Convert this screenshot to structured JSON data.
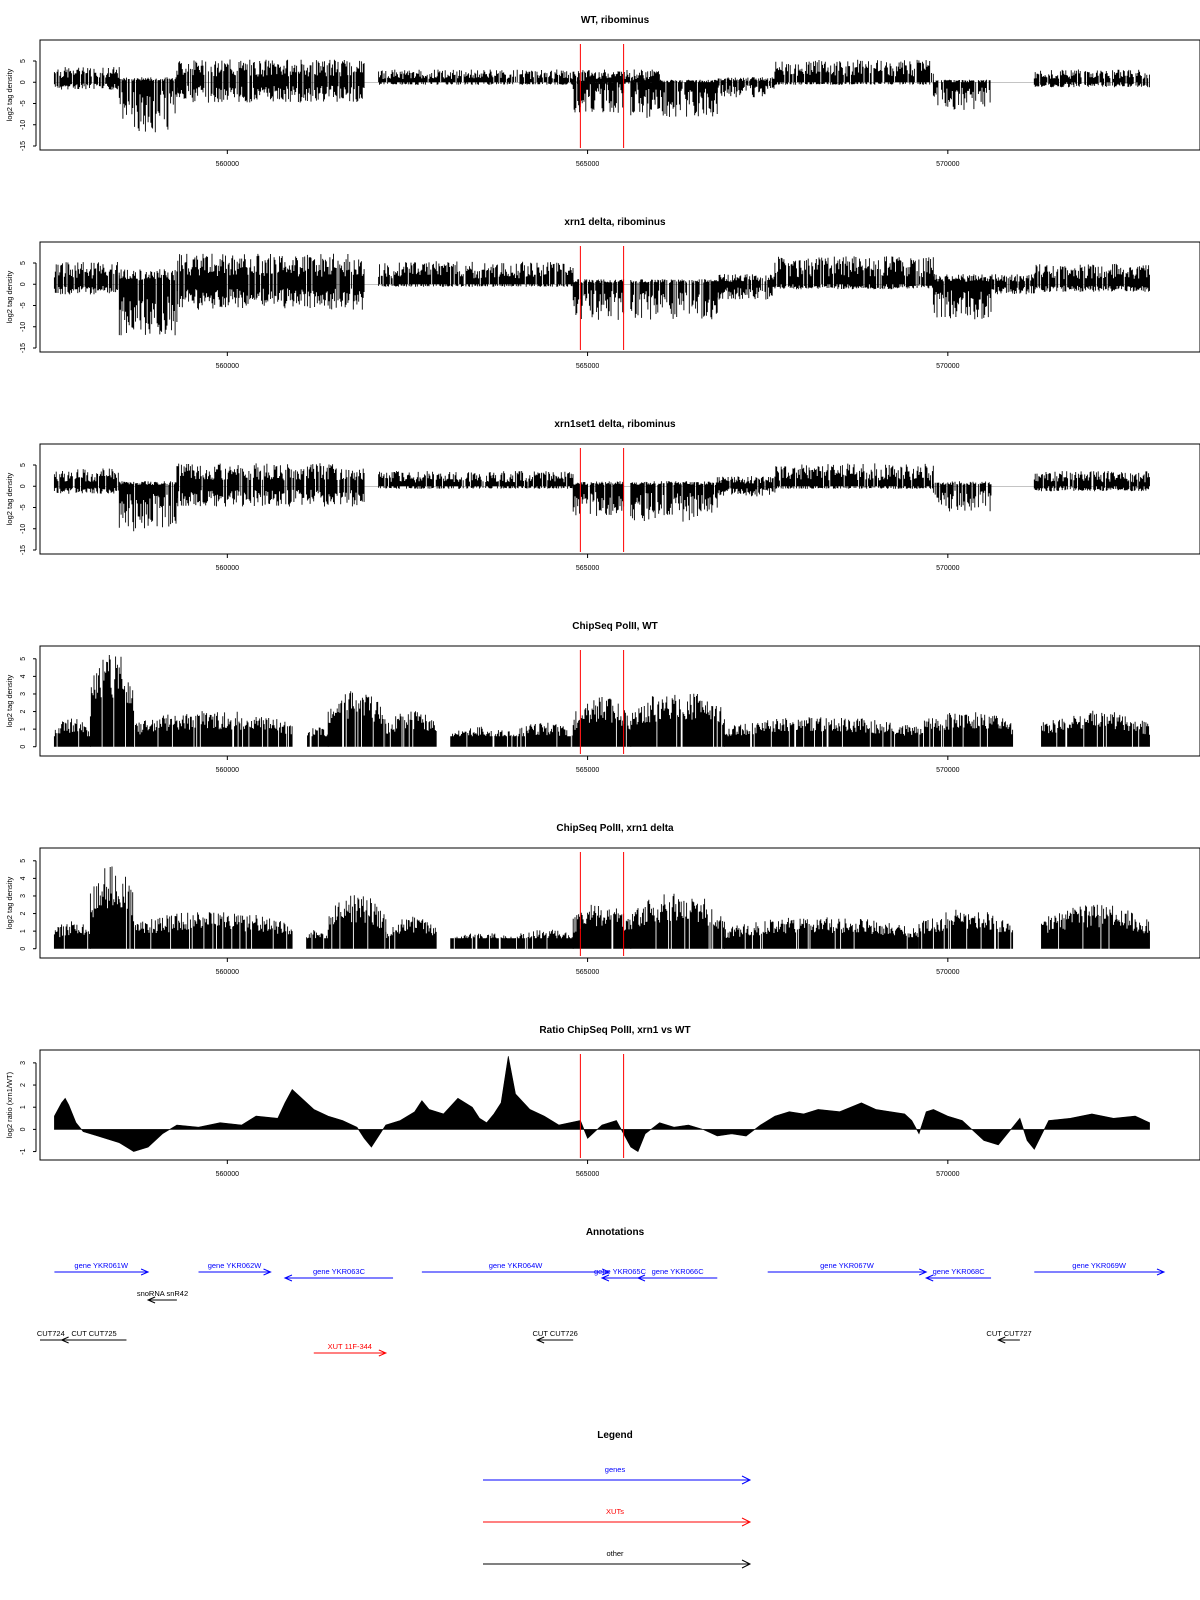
{
  "colors": {
    "foreground": "#000000",
    "marker": "#ff0000",
    "genes": "#0000ff",
    "xuts": "#ff0000",
    "other": "#000000"
  },
  "chart_data": [
    {
      "type": "bar",
      "title": "WT, ribominus",
      "ylabel": "log2 tag density",
      "ylim": [
        -15,
        9
      ],
      "yticks": [
        "5",
        "0",
        "-5",
        "-10",
        "-15"
      ],
      "xlim": [
        557400,
        573500
      ],
      "xticks": [
        "560000",
        "565000",
        "570000"
      ],
      "markers": [
        564900,
        565500
      ],
      "segments": [
        {
          "x0": 557600,
          "x1": 558500,
          "plus": 3,
          "minus": 1.5
        },
        {
          "x0": 558500,
          "x1": 559300,
          "plus": 1,
          "minus": 10
        },
        {
          "x0": 559300,
          "x1": 561900,
          "plus": 4.5,
          "minus": 4
        },
        {
          "x0": 562100,
          "x1": 566000,
          "plus": 2.5,
          "minus": 0.5
        },
        {
          "x0": 564800,
          "x1": 565500,
          "plus": 0.5,
          "minus": 6
        },
        {
          "x0": 565600,
          "x1": 566800,
          "plus": 0.5,
          "minus": 7
        },
        {
          "x0": 566800,
          "x1": 567600,
          "plus": 1,
          "minus": 3
        },
        {
          "x0": 567600,
          "x1": 569800,
          "plus": 4.5,
          "minus": 0.5
        },
        {
          "x0": 569800,
          "x1": 570600,
          "plus": 0.5,
          "minus": 5.5
        },
        {
          "x0": 571200,
          "x1": 572800,
          "plus": 2.5,
          "minus": 1
        }
      ]
    },
    {
      "type": "bar",
      "title": "xrn1 delta, ribominus",
      "ylabel": "log2 tag density",
      "ylim": [
        -15,
        9
      ],
      "yticks": [
        "5",
        "0",
        "-5",
        "-10",
        "-15"
      ],
      "xlim": [
        557400,
        573500
      ],
      "xticks": [
        "560000",
        "565000",
        "570000"
      ],
      "markers": [
        564900,
        565500
      ],
      "segments": [
        {
          "x0": 557600,
          "x1": 558500,
          "plus": 4.5,
          "minus": 2
        },
        {
          "x0": 558500,
          "x1": 559300,
          "plus": 3,
          "minus": 10
        },
        {
          "x0": 559300,
          "x1": 561900,
          "plus": 6,
          "minus": 5
        },
        {
          "x0": 562100,
          "x1": 564800,
          "plus": 4.5,
          "minus": 0.5
        },
        {
          "x0": 564800,
          "x1": 565500,
          "plus": 1,
          "minus": 7
        },
        {
          "x0": 565600,
          "x1": 566800,
          "plus": 1,
          "minus": 7
        },
        {
          "x0": 566800,
          "x1": 567600,
          "plus": 2,
          "minus": 3
        },
        {
          "x0": 567600,
          "x1": 569800,
          "plus": 5.5,
          "minus": 1
        },
        {
          "x0": 569800,
          "x1": 570600,
          "plus": 2,
          "minus": 7
        },
        {
          "x0": 570600,
          "x1": 571200,
          "plus": 2,
          "minus": 2
        },
        {
          "x0": 571200,
          "x1": 572800,
          "plus": 4,
          "minus": 1.5
        }
      ]
    },
    {
      "type": "bar",
      "title": "xrn1set1 delta, ribominus",
      "ylabel": "log2 tag density",
      "ylim": [
        -15,
        9
      ],
      "yticks": [
        "5",
        "0",
        "-5",
        "-10",
        "-15"
      ],
      "xlim": [
        557400,
        573500
      ],
      "xticks": [
        "560000",
        "565000",
        "570000"
      ],
      "markers": [
        564900,
        565500
      ],
      "segments": [
        {
          "x0": 557600,
          "x1": 558500,
          "plus": 3.5,
          "minus": 1.5
        },
        {
          "x0": 558500,
          "x1": 559300,
          "plus": 1,
          "minus": 9
        },
        {
          "x0": 559300,
          "x1": 561900,
          "plus": 4.5,
          "minus": 4
        },
        {
          "x0": 562100,
          "x1": 564800,
          "plus": 3,
          "minus": 0.5
        },
        {
          "x0": 564800,
          "x1": 565500,
          "plus": 1,
          "minus": 6
        },
        {
          "x0": 565600,
          "x1": 566800,
          "plus": 1,
          "minus": 7
        },
        {
          "x0": 566800,
          "x1": 567600,
          "plus": 2,
          "minus": 2
        },
        {
          "x0": 567600,
          "x1": 569800,
          "plus": 4.5,
          "minus": 0.5
        },
        {
          "x0": 569800,
          "x1": 570600,
          "plus": 1,
          "minus": 5
        },
        {
          "x0": 571200,
          "x1": 572800,
          "plus": 3,
          "minus": 1
        }
      ]
    },
    {
      "type": "bar",
      "title": "ChipSeq PolII, WT",
      "ylabel": "log2 tag density",
      "ylim": [
        -0.3,
        5.5
      ],
      "yticks": [
        "5",
        "4",
        "3",
        "2",
        "1",
        "0"
      ],
      "xlim": [
        557400,
        573500
      ],
      "xticks": [
        "560000",
        "565000",
        "570000"
      ],
      "markers": [
        564900,
        565500
      ],
      "segments": [
        {
          "x0": 557600,
          "x1": 558100,
          "level": 1.4
        },
        {
          "x0": 558100,
          "x1": 558700,
          "level": 4.8
        },
        {
          "x0": 558700,
          "x1": 560900,
          "level": 1.8
        },
        {
          "x0": 561100,
          "x1": 561400,
          "level": 1
        },
        {
          "x0": 561400,
          "x1": 562200,
          "level": 2.8
        },
        {
          "x0": 562200,
          "x1": 562900,
          "level": 1.8
        },
        {
          "x0": 563100,
          "x1": 564000,
          "level": 1
        },
        {
          "x0": 564000,
          "x1": 564800,
          "level": 1.2
        },
        {
          "x0": 564800,
          "x1": 565600,
          "level": 2.5
        },
        {
          "x0": 565600,
          "x1": 566900,
          "level": 2.8
        },
        {
          "x0": 566900,
          "x1": 569600,
          "level": 1.5
        },
        {
          "x0": 569600,
          "x1": 570900,
          "level": 1.8
        },
        {
          "x0": 571300,
          "x1": 572800,
          "level": 1.8
        }
      ]
    },
    {
      "type": "bar",
      "title": "ChipSeq PolII, xrn1 delta",
      "ylabel": "log2 tag density",
      "ylim": [
        -0.3,
        5.5
      ],
      "yticks": [
        "5",
        "4",
        "3",
        "2",
        "1",
        "0"
      ],
      "xlim": [
        557400,
        573500
      ],
      "xticks": [
        "560000",
        "565000",
        "570000"
      ],
      "markers": [
        564900,
        565500
      ],
      "segments": [
        {
          "x0": 557600,
          "x1": 558100,
          "level": 1.4
        },
        {
          "x0": 558100,
          "x1": 558700,
          "level": 4.2
        },
        {
          "x0": 558700,
          "x1": 560900,
          "level": 1.9
        },
        {
          "x0": 561100,
          "x1": 561400,
          "level": 1
        },
        {
          "x0": 561400,
          "x1": 562200,
          "level": 2.7
        },
        {
          "x0": 562200,
          "x1": 562900,
          "level": 1.6
        },
        {
          "x0": 563100,
          "x1": 564000,
          "level": 0.8
        },
        {
          "x0": 564000,
          "x1": 564800,
          "level": 1
        },
        {
          "x0": 564800,
          "x1": 565600,
          "level": 2.3
        },
        {
          "x0": 565600,
          "x1": 566900,
          "level": 2.8
        },
        {
          "x0": 566900,
          "x1": 569600,
          "level": 1.6
        },
        {
          "x0": 569600,
          "x1": 570900,
          "level": 2
        },
        {
          "x0": 571300,
          "x1": 572800,
          "level": 2.2
        }
      ]
    },
    {
      "type": "area",
      "title": "Ratio ChipSeq PolII, xrn1 vs WT",
      "ylabel": "log2 ratio (xrn1/WT)",
      "ylim": [
        -1.2,
        3.4
      ],
      "yticks": [
        "3",
        "2",
        "1",
        "0",
        "-1"
      ],
      "xlim": [
        557400,
        573500
      ],
      "xticks": [
        "560000",
        "565000",
        "570000"
      ],
      "markers": [
        564900,
        565500
      ],
      "x": [
        557600,
        557700,
        557750,
        557800,
        557900,
        558000,
        558200,
        558500,
        558700,
        558900,
        559100,
        559300,
        559600,
        559900,
        560200,
        560400,
        560700,
        560800,
        560900,
        561000,
        561200,
        561400,
        561600,
        561800,
        561900,
        562000,
        562200,
        562400,
        562600,
        562700,
        562800,
        563000,
        563200,
        563400,
        563500,
        563600,
        563700,
        563800,
        563900,
        564000,
        564200,
        564400,
        564600,
        564900,
        565000,
        565200,
        565400,
        565600,
        565700,
        565800,
        566000,
        566200,
        566400,
        566600,
        566800,
        567000,
        567200,
        567400,
        567600,
        567800,
        568000,
        568200,
        568500,
        568800,
        569000,
        569200,
        569400,
        569500,
        569600,
        569700,
        569800,
        570000,
        570200,
        570500,
        570700,
        570900,
        571000,
        571100,
        571200,
        571400,
        571700,
        572000,
        572300,
        572600,
        572800
      ],
      "values": [
        0.6,
        1.2,
        1.4,
        1.1,
        0.3,
        -0.1,
        -0.3,
        -0.6,
        -1.0,
        -0.8,
        -0.2,
        0.2,
        0.1,
        0.3,
        0.2,
        0.6,
        0.5,
        1.2,
        1.8,
        1.5,
        0.9,
        0.6,
        0.4,
        0.1,
        -0.4,
        -0.8,
        0.2,
        0.4,
        0.8,
        1.3,
        0.9,
        0.7,
        1.4,
        1.0,
        0.5,
        0.3,
        0.7,
        1.2,
        3.3,
        1.6,
        0.9,
        0.6,
        0.2,
        0.4,
        -0.4,
        0.2,
        0.4,
        -0.8,
        -1.0,
        -0.2,
        0.3,
        0.1,
        0.2,
        0.0,
        -0.3,
        -0.2,
        -0.3,
        0.2,
        0.6,
        0.8,
        0.7,
        0.9,
        0.8,
        1.2,
        0.9,
        0.8,
        0.7,
        0.4,
        -0.2,
        0.8,
        0.9,
        0.6,
        0.4,
        -0.5,
        -0.7,
        0.1,
        0.5,
        -0.5,
        -0.9,
        0.4,
        0.5,
        0.7,
        0.5,
        0.6,
        0.3
      ]
    }
  ],
  "annotations": {
    "title": "Annotations",
    "xlim": [
      557400,
      573500
    ],
    "features": [
      {
        "label": "gene YKR061W",
        "x0": 557600,
        "x1": 558900,
        "dir": "right",
        "row": 0,
        "kind": "genes"
      },
      {
        "label": "gene YKR062W",
        "x0": 559600,
        "x1": 560600,
        "dir": "right",
        "row": 0,
        "kind": "genes"
      },
      {
        "label": "gene YKR063C",
        "x0": 560800,
        "x1": 562300,
        "dir": "left",
        "row": 1,
        "kind": "genes"
      },
      {
        "label": "gene YKR064W",
        "x0": 562700,
        "x1": 565300,
        "dir": "right",
        "row": 0,
        "kind": "genes"
      },
      {
        "label": "gene YKR065C",
        "x0": 565200,
        "x1": 565700,
        "dir": "left",
        "row": 1,
        "kind": "genes"
      },
      {
        "label": "gene YKR066C",
        "x0": 565700,
        "x1": 566800,
        "dir": "left",
        "row": 1,
        "kind": "genes"
      },
      {
        "label": "gene YKR067W",
        "x0": 567500,
        "x1": 569700,
        "dir": "right",
        "row": 0,
        "kind": "genes"
      },
      {
        "label": "gene YKR068C",
        "x0": 569700,
        "x1": 570600,
        "dir": "left",
        "row": 1,
        "kind": "genes"
      },
      {
        "label": "gene YKR069W",
        "x0": 571200,
        "x1": 573000,
        "dir": "right",
        "row": 0,
        "kind": "genes"
      },
      {
        "label": "snoRNA snR42",
        "x0": 558900,
        "x1": 559300,
        "dir": "left",
        "row": 2,
        "kind": "other"
      },
      {
        "label": "CUT724",
        "x0": 557400,
        "x1": 557700,
        "dir": "none",
        "row": 3,
        "kind": "other"
      },
      {
        "label": "CUT CUT725",
        "x0": 557700,
        "x1": 558600,
        "dir": "left",
        "row": 3,
        "kind": "other"
      },
      {
        "label": "CUT CUT726",
        "x0": 564300,
        "x1": 564800,
        "dir": "left",
        "row": 3,
        "kind": "other"
      },
      {
        "label": "CUT CUT727",
        "x0": 570700,
        "x1": 571000,
        "dir": "left",
        "row": 3,
        "kind": "other"
      },
      {
        "label": "XUT 11F-344",
        "x0": 561200,
        "x1": 562200,
        "dir": "right",
        "row": 4,
        "kind": "xuts"
      }
    ]
  },
  "legend": {
    "title": "Legend",
    "items": [
      {
        "label": "genes",
        "kind": "genes"
      },
      {
        "label": "XUTs",
        "kind": "xuts"
      },
      {
        "label": "other",
        "kind": "other"
      }
    ]
  }
}
